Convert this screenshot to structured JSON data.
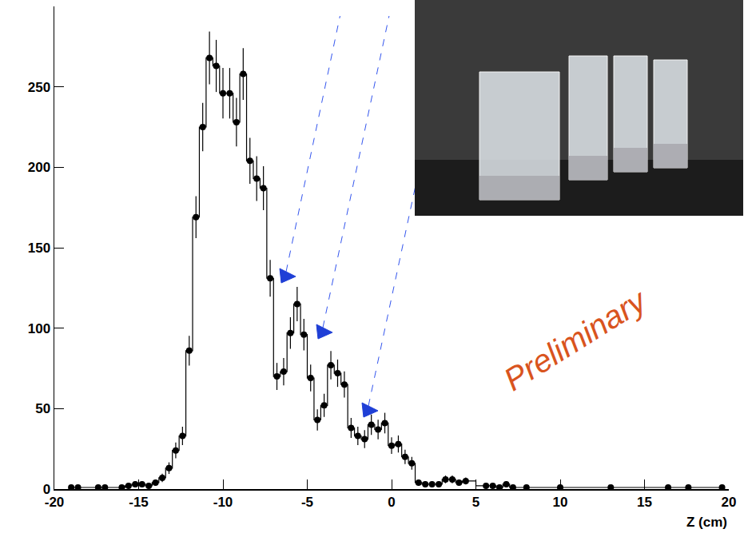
{
  "chart_data": {
    "type": "scatter",
    "x": [
      -19,
      -18.6,
      -17.4,
      -17,
      -16,
      -15.6,
      -15.2,
      -14.8,
      -14.4,
      -14,
      -13.6,
      -13.2,
      -12.8,
      -12.4,
      -12,
      -11.6,
      -11.2,
      -10.8,
      -10.4,
      -10,
      -9.6,
      -9.2,
      -8.8,
      -8.4,
      -8,
      -7.6,
      -7.2,
      -6.8,
      -6.4,
      -6,
      -5.6,
      -5.2,
      -4.8,
      -4.4,
      -4,
      -3.6,
      -3.2,
      -2.8,
      -2.4,
      -2,
      -1.6,
      -1.2,
      -0.8,
      -0.4,
      0,
      0.4,
      0.8,
      1.2,
      1.6,
      2,
      2.4,
      2.8,
      3.2,
      3.6,
      4,
      4.4,
      5.6,
      6,
      6.4,
      6.8,
      7.2,
      8,
      10,
      13,
      16.4,
      17.6,
      19.6
    ],
    "values": [
      1,
      1,
      1,
      1,
      1,
      2,
      3,
      3,
      2,
      4,
      7,
      13,
      24,
      33,
      86,
      169,
      225,
      268,
      263,
      246,
      246,
      228,
      258,
      204,
      193,
      187,
      131,
      70,
      73,
      97,
      115,
      96,
      69,
      43,
      52,
      77,
      72,
      65,
      38,
      33,
      31,
      40,
      37,
      41,
      27,
      28,
      20,
      16,
      4,
      3,
      3,
      3,
      6,
      6,
      4,
      5,
      2,
      2,
      1,
      3,
      1,
      1,
      1,
      1,
      1,
      1,
      1
    ],
    "errors": [
      1,
      1,
      1,
      1,
      1,
      1.4,
      1.7,
      1.7,
      1.4,
      2,
      2.6,
      3.6,
      4.9,
      5.7,
      9.3,
      13,
      15,
      16.4,
      16.2,
      15.7,
      15.7,
      15.1,
      16.1,
      14.3,
      13.9,
      13.7,
      11.4,
      8.4,
      8.5,
      9.8,
      10.7,
      9.8,
      8.3,
      6.6,
      7.2,
      8.8,
      8.5,
      8.1,
      6.2,
      5.7,
      5.6,
      6.3,
      6.1,
      6.4,
      5.2,
      5.3,
      4.5,
      4,
      2,
      1.7,
      1.7,
      1.7,
      2.4,
      2.4,
      2,
      2.2,
      1.4,
      1.4,
      1,
      1.7,
      1,
      1,
      1,
      1,
      1,
      1,
      1
    ],
    "color": "#000000",
    "marker": "circle",
    "line_style": "steps",
    "xlim": [
      -20,
      20
    ],
    "xticks": [
      -20,
      -15,
      -10,
      -5,
      0,
      5,
      10,
      15,
      20
    ],
    "ylim": [
      0,
      300
    ],
    "yticks": [
      0,
      50,
      100,
      150,
      200,
      250
    ],
    "xlabel": "Z (cm)",
    "annotations": [
      "Preliminary"
    ],
    "grid": false
  }
}
